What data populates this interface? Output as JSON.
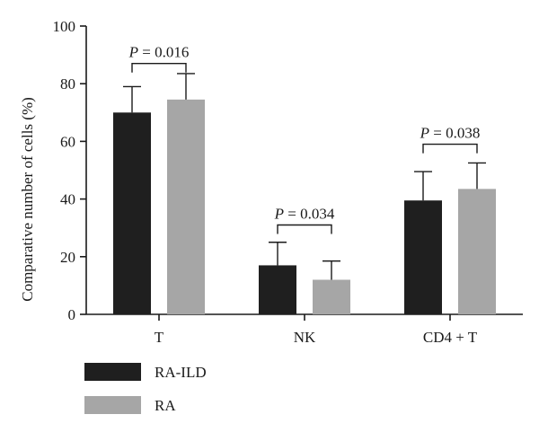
{
  "chart_data": {
    "type": "bar",
    "categories": [
      "T",
      "NK",
      "CD4 + T"
    ],
    "series": [
      {
        "name": "RA-ILD",
        "color": "#1f1f1f",
        "values": [
          70,
          17,
          39.5
        ],
        "errors": [
          9,
          8,
          10
        ]
      },
      {
        "name": "RA",
        "color": "#a6a6a6",
        "values": [
          74.5,
          12,
          43.5
        ],
        "errors": [
          9,
          6.5,
          9
        ]
      }
    ],
    "ylabel": "Comparative number of cells (%)",
    "xlabel": "",
    "ylim": [
      0,
      100
    ],
    "yticks": [
      0,
      20,
      40,
      60,
      80,
      100
    ],
    "grid": false,
    "legend_position": "bottom-left",
    "annotations": [
      {
        "category_index": 0,
        "label": "P = 0.016",
        "p_prefix": "P",
        "p_value": "= 0.016",
        "bracket_y": 87
      },
      {
        "category_index": 1,
        "label": "P = 0.034",
        "p_prefix": "P",
        "p_value": "= 0.034",
        "bracket_y": 31
      },
      {
        "category_index": 2,
        "label": "P = 0.038",
        "p_prefix": "P",
        "p_value": "= 0.038",
        "bracket_y": 59
      }
    ]
  }
}
